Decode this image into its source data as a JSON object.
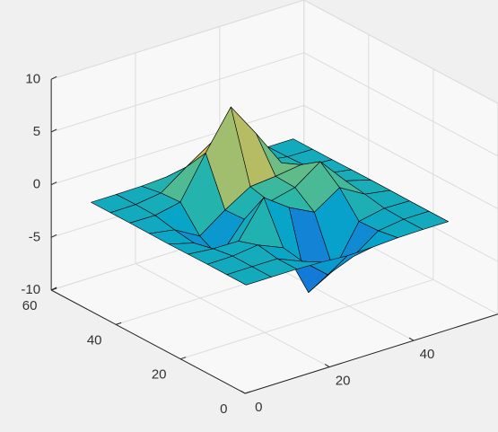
{
  "chart_data": {
    "type": "surface",
    "x": [
      1,
      7,
      13,
      19,
      25,
      31,
      37,
      43,
      49
    ],
    "y": [
      1,
      7,
      13,
      19,
      25,
      31,
      37,
      43,
      49
    ],
    "z": [
      [
        0,
        0,
        0,
        -0.08,
        -0.24,
        -0.17,
        -0.03,
        0,
        0
      ],
      [
        0,
        0.01,
        0.01,
        -1.0,
        -3.02,
        -2.05,
        -0.35,
        -0.01,
        0
      ],
      [
        0,
        0.03,
        0.33,
        -0.68,
        -5.68,
        -4.32,
        -0.44,
        0.05,
        0
      ],
      [
        -0.02,
        -0.25,
        -0.28,
        3.09,
        1.4,
        0.2,
        1.78,
        0.41,
        0.02
      ],
      [
        -0.04,
        -0.69,
        -2.77,
        0.06,
        0.98,
        1.57,
        3.27,
        0.7,
        0.03
      ],
      [
        -0.02,
        -0.42,
        -1.76,
        -0.05,
        1.42,
        1.65,
        1.99,
        0.41,
        0.02
      ],
      [
        0,
        -0.03,
        0.48,
        4.38,
        8.0,
        4.72,
        1.19,
        0.12,
        0
      ],
      [
        0,
        0.02,
        0.36,
        2.07,
        3.65,
        2.09,
        0.41,
        0.03,
        0
      ],
      [
        0,
        0,
        0.03,
        0.17,
        0.3,
        0.17,
        0.03,
        0,
        0
      ]
    ],
    "xlim": [
      0,
      60
    ],
    "ylim": [
      0,
      60
    ],
    "zlim": [
      -10,
      10
    ],
    "xticks": [
      0,
      20,
      40
    ],
    "yticks": [
      0,
      20,
      40,
      60
    ],
    "zticks": [
      -10,
      -5,
      0,
      5,
      10
    ],
    "view": [
      -37.5,
      30
    ],
    "grid": true,
    "edge_color": "#000000",
    "colormap": [
      "#352a87",
      "#0f5cdd",
      "#1481d6",
      "#06a4ca",
      "#2eb7a4",
      "#87bf77",
      "#d1bb59",
      "#fec832",
      "#f9fb0e"
    ]
  }
}
